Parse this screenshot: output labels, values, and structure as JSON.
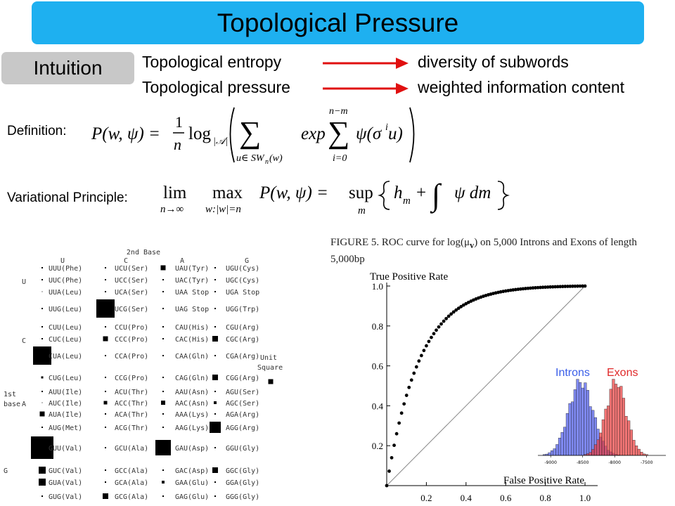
{
  "title": "Topological Pressure",
  "intuition": {
    "label": "Intuition",
    "rows": [
      {
        "left": "Topological entropy",
        "right": "diversity of subwords"
      },
      {
        "left": "Topological pressure",
        "right": "weighted information content"
      }
    ],
    "arrow_color": "#e01010"
  },
  "definition": {
    "label": "Definition:",
    "lhs": "P(w, ψ) =",
    "frac_num": "1",
    "frac_den": "n",
    "log": "log",
    "log_sub": "|𝒜|",
    "sum_sub": "u∈ SW",
    "sum_sub_n": "n",
    "sum_sub_w": "(w)",
    "exp": "exp",
    "inner_sum_top": "n−m",
    "inner_sum_bot": "i=0",
    "body": "ψ(σ",
    "sup_i": "i",
    "body_end": " u)"
  },
  "variational": {
    "label": "Variational Principle:",
    "lim": "lim",
    "lim_sub": "n→∞",
    "max": "max",
    "max_sub": "w:|w|=n",
    "lhs": "P(w, ψ) =",
    "sup": "sup",
    "sup_sub": "m",
    "h": "h",
    "h_sub": "m",
    "plus": "+",
    "integral_body": "ψ dm"
  },
  "codon_table": {
    "header_2nd": "2nd Base",
    "col_letters": [
      "U",
      "C",
      "A",
      "G"
    ],
    "first_base_label_1": "1st",
    "first_base_label_2": "base",
    "row_letters": [
      "U",
      "C",
      "A",
      "G"
    ],
    "unit_label_1": "Unit",
    "unit_label_2": "Square",
    "columns": [
      [
        "UUU(Phe)",
        "UUC(Phe)",
        "UUA(Leu)",
        "UUG(Leu)",
        "CUU(Leu)",
        "CUC(Leu)",
        "CUA(Leu)",
        "CUG(Leu)",
        "AUU(Ile)",
        "AUC(Ile)",
        "AUA(Ile)",
        "AUG(Met)",
        "GUU(Val)",
        "GUC(Val)",
        "GUA(Val)",
        "GUG(Val)"
      ],
      [
        "UCU(Ser)",
        "UCC(Ser)",
        "UCA(Ser)",
        "UCG(Ser)",
        "CCU(Pro)",
        "CCC(Pro)",
        "CCA(Pro)",
        "CCG(Pro)",
        "ACU(Thr)",
        "ACC(Thr)",
        "ACA(Thr)",
        "ACG(Thr)",
        "GCU(Ala)",
        "GCC(Ala)",
        "GCA(Ala)",
        "GCG(Ala)"
      ],
      [
        "UAU(Tyr)",
        "UAC(Tyr)",
        "UAA Stop",
        "UAG Stop",
        "CAU(His)",
        "CAC(His)",
        "CAA(Gln)",
        "CAG(Gln)",
        "AAU(Asn)",
        "AAC(Asn)",
        "AAA(Lys)",
        "AAG(Lys)",
        "GAU(Asp)",
        "GAC(Asp)",
        "GAA(Glu)",
        "GAG(Glu)"
      ],
      [
        "UGU(Cys)",
        "UGC(Cys)",
        "UGA Stop",
        "UGG(Trp)",
        "CGU(Arg)",
        "CGC(Arg)",
        "CGA(Arg)",
        "CGG(Arg)",
        "AGU(Ser)",
        "AGC(Ser)",
        "AGA(Arg)",
        "AGG(Arg)",
        "GGU(Gly)",
        "GGC(Gly)",
        "GGA(Gly)",
        "GGG(Gly)"
      ]
    ],
    "square_sizes": [
      [
        2,
        2,
        1,
        2,
        2,
        2,
        26,
        3,
        2,
        1,
        7,
        2,
        32,
        10,
        10,
        2
      ],
      [
        2,
        2,
        2,
        26,
        2,
        7,
        2,
        2,
        2,
        5,
        2,
        2,
        2,
        2,
        2,
        8
      ],
      [
        7,
        2,
        2,
        2,
        2,
        2,
        2,
        2,
        2,
        6,
        2,
        2,
        22,
        2,
        4,
        2
      ],
      [
        2,
        2,
        2,
        2,
        2,
        8,
        2,
        8,
        2,
        4,
        2,
        16,
        2,
        8,
        2,
        2
      ]
    ],
    "unit_square_size": 7
  },
  "caption": {
    "prefix": "FIGURE 5.",
    "text": "ROC curve for log(μ",
    "sub": "v",
    "text2": ") on 5,000 Introns and Exons of length 5,000bp"
  },
  "chart_data": [
    {
      "type": "scatter",
      "title": "",
      "ylabel": "True Positive Rate",
      "xlabel": "False Positive Rate",
      "xlim": [
        0,
        1.05
      ],
      "ylim": [
        0,
        1.05
      ],
      "x_ticks": [
        "0.2",
        "0.4",
        "0.6",
        "0.8",
        "1.0"
      ],
      "y_ticks": [
        "0.2",
        "0.4",
        "0.6",
        "0.8",
        "1.0"
      ],
      "diagonal": true,
      "roc_k": 6.0
    },
    {
      "type": "bar",
      "title": "",
      "series": [
        {
          "name": "Introns",
          "color": "#4a58ee"
        },
        {
          "name": "Exons",
          "color": "#ee3a3a"
        }
      ],
      "x_ticks": [
        "-9000",
        "-8500",
        "-8000",
        "-7500"
      ],
      "introns_center": -8530,
      "introns_sd": 190,
      "exons_center": -7980,
      "exons_sd": 160,
      "xlim": [
        -9200,
        -7200
      ]
    }
  ]
}
